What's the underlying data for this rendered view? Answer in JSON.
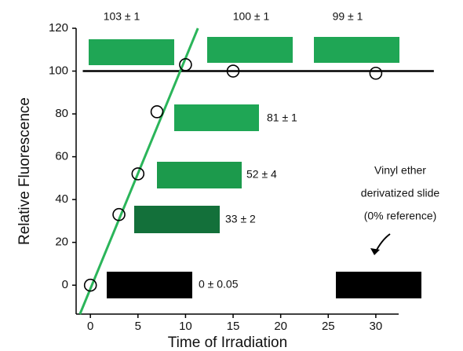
{
  "chart_data": {
    "type": "scatter",
    "x_label": "Time of Irradiation",
    "y_label": "Relative Fluorescence",
    "x": [
      0,
      3,
      5,
      7,
      10,
      15,
      30
    ],
    "series": [
      {
        "color": "#000000",
        "values": [
          0,
          33,
          52,
          81,
          103,
          100,
          99
        ]
      }
    ],
    "fit_line": {
      "color": "#2bb55a",
      "x": [
        -1.1,
        11.3
      ],
      "y": [
        -13.5,
        120
      ]
    },
    "reference_line": {
      "color": "#000000",
      "y": 100,
      "x": [
        -0.8,
        36.1
      ]
    },
    "xlim": [
      -1.5,
      32.4
    ],
    "ylim": [
      -13.5,
      120
    ],
    "xticks": [
      0,
      5,
      10,
      15,
      20,
      25,
      30
    ],
    "yticks": [
      0,
      20,
      40,
      60,
      80,
      100,
      120
    ],
    "slides": [
      {
        "label": "103 ± 1",
        "color": "#1fa655"
      },
      {
        "label": "100 ± 1",
        "color": "#1fa655"
      },
      {
        "label": "99 ± 1",
        "color": "#1fa655"
      },
      {
        "label": "81 ± 1",
        "color": "#1fa655"
      },
      {
        "label": "52 ± 4",
        "color": "#1c9a4c"
      },
      {
        "label": "33 ± 2",
        "color": "#13703a"
      },
      {
        "label": "0 ± 0.05",
        "color": "#000000"
      },
      {
        "label": null,
        "color": "#000000"
      }
    ],
    "reference_note": [
      "Vinyl ether",
      "derivatized slide",
      "(0% reference)"
    ]
  }
}
